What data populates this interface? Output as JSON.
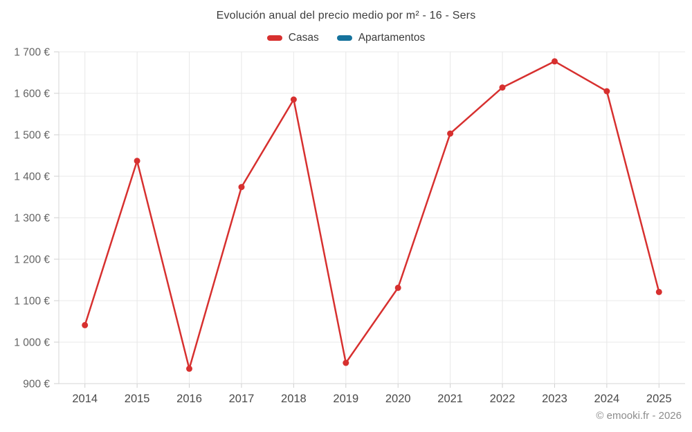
{
  "header": {
    "title": "Evolución anual del precio medio por m² - 16 - Sers"
  },
  "legend": {
    "items": [
      {
        "label": "Casas",
        "color": "#d7302f"
      },
      {
        "label": "Apartamentos",
        "color": "#15729c"
      }
    ]
  },
  "chart_data": {
    "type": "line",
    "title": "Evolución anual del precio medio por m² - 16 - Sers",
    "categories": [
      "2014",
      "2015",
      "2016",
      "2017",
      "2018",
      "2019",
      "2020",
      "2021",
      "2022",
      "2023",
      "2024",
      "2025"
    ],
    "series": [
      {
        "name": "Casas",
        "color": "#d7302f",
        "values": [
          1041,
          1437,
          936,
          1374,
          1585,
          950,
          1131,
          1503,
          1614,
          1677,
          1605,
          1121
        ]
      },
      {
        "name": "Apartamentos",
        "color": "#15729c",
        "values": []
      }
    ],
    "ylim": [
      900,
      1700
    ],
    "ytick_step": 100,
    "ytick_labels": [
      "900 €",
      "1 000 €",
      "1 100 €",
      "1 200 €",
      "1 300 €",
      "1 400 €",
      "1 500 €",
      "1 600 €",
      "1 700 €"
    ],
    "xlabel": "",
    "ylabel": "",
    "grid": true,
    "legend_position": "top"
  },
  "footer": {
    "credit": "© emooki.fr - 2026"
  },
  "colors": {
    "background": "#ffffff",
    "grid": "#e8e8e8",
    "axis": "#d4d4d4",
    "tick": "#cfcfcf",
    "y_label_text": "#646464",
    "x_label_text": "#4a4a4a",
    "title_text": "#3c3c3c",
    "footer_text": "#8c8c8c"
  }
}
